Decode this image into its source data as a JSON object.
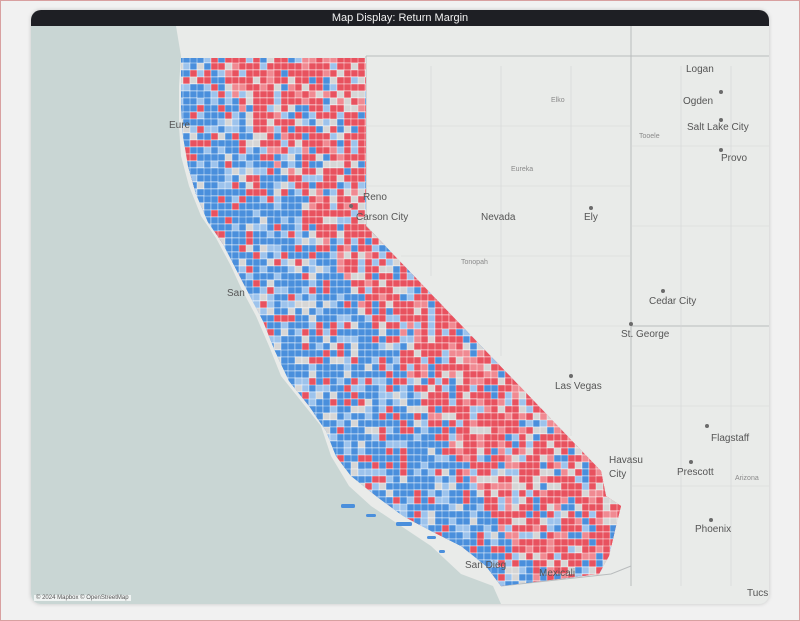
{
  "title": "Map Display: Return Margin",
  "attribution": "© 2024 Mapbox © OpenStreetMap",
  "colors": {
    "ocean": "#c9d6d4",
    "land": "#e9ebe9",
    "high": "#e8525f",
    "high_light": "#f08a92",
    "low": "#4a8fdc",
    "low_light": "#9dc3ec",
    "neutral": "#d6d6d6"
  },
  "city_labels": {
    "logan": "Logan",
    "ogden": "Ogden",
    "salt_lake_city": "Salt Lake City",
    "provo": "Provo",
    "eureka": "Eure",
    "reno": "Reno",
    "carson_city": "Carson City",
    "nevada": "Nevada",
    "ely": "Ely",
    "cedar_city": "Cedar City",
    "st_george": "St. George",
    "las_vegas": "Las Vegas",
    "havasu": "Havasu",
    "havasu_city": "City",
    "flagstaff": "Flagstaff",
    "prescott": "Prescott",
    "phoenix": "Phoenix",
    "san_francisco": "San",
    "san_diego": "San Dieg",
    "mexicali": "Mexicali",
    "tucson": "Tucs",
    "arizona": "Arizona",
    "tooele": "Tooele",
    "elko": "Elko",
    "eureka_nv": "Eureka",
    "tonopah": "Tonopah"
  }
}
